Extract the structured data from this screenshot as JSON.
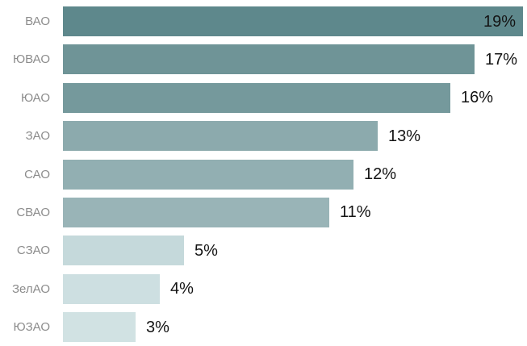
{
  "chart_data": {
    "type": "bar",
    "orientation": "horizontal",
    "title": "",
    "xlabel": "",
    "ylabel": "",
    "grid": false,
    "legend": false,
    "axis_lines": false,
    "xlim": [
      0,
      19
    ],
    "categories": [
      "ВАО",
      "ЮВАО",
      "ЮАО",
      "ЗАО",
      "САО",
      "СВАО",
      "СЗАО",
      "ЗелАО",
      "ЮЗАО"
    ],
    "values": [
      19,
      17,
      16,
      13,
      12,
      11,
      5,
      4,
      3
    ],
    "value_labels": [
      "19%",
      "17%",
      "16%",
      "13%",
      "12%",
      "11%",
      "5%",
      "4%",
      "3%"
    ],
    "bar_colors": [
      "#5e888c",
      "#6f9497",
      "#75999c",
      "#8caaad",
      "#92afb2",
      "#99b4b7",
      "#c5d9db",
      "#cddfe1",
      "#d1e2e3"
    ],
    "value_label_inside": [
      true,
      false,
      false,
      false,
      false,
      false,
      false,
      false,
      false
    ],
    "colors": {
      "background": "#ffffff",
      "category_label": "#8c8c8c",
      "value_label": "#141414"
    }
  }
}
